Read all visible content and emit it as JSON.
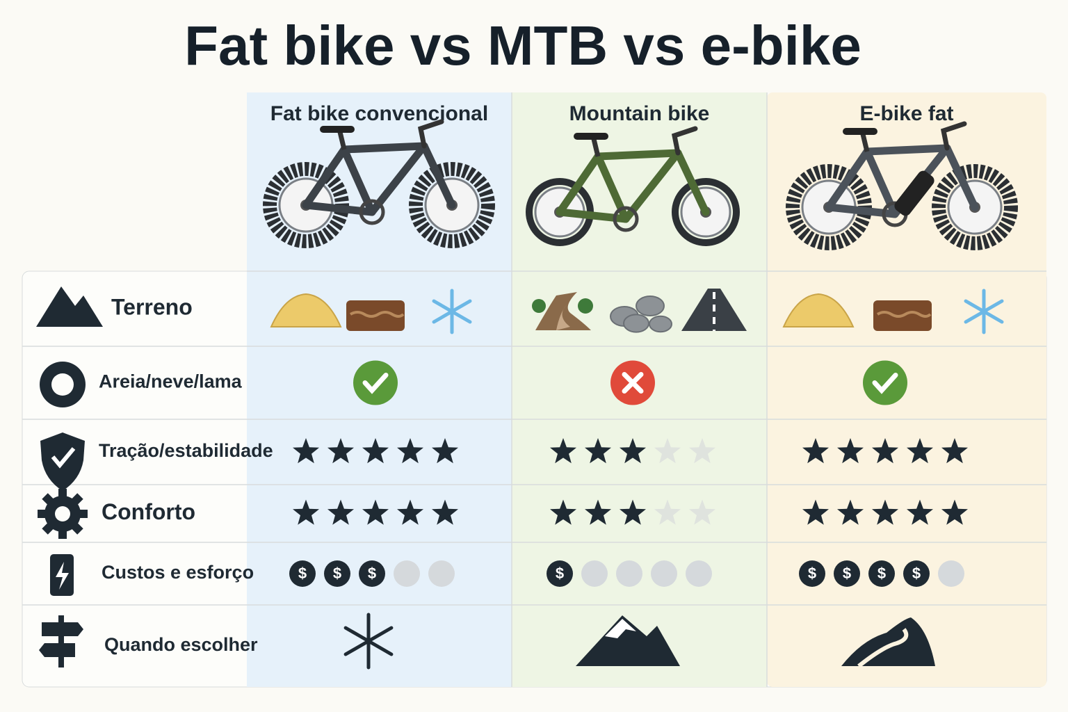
{
  "title": "Fat bike vs MTB vs e-bike",
  "columns": [
    "Fat bike convencional",
    "Mountain bike",
    "E-bike fat"
  ],
  "rows": [
    {
      "label": "Terreno"
    },
    {
      "label": "Areia/neve/lama",
      "values": [
        true,
        false,
        true
      ]
    },
    {
      "label": "Tração/estabilidade",
      "values": [
        5,
        3,
        5
      ],
      "max": 5
    },
    {
      "label": "Conforto",
      "values": [
        5,
        3,
        5
      ],
      "max": 5
    },
    {
      "label": "Custos e esforço",
      "values": [
        3,
        1,
        4
      ],
      "max": 5,
      "symbol": "$"
    },
    {
      "label": "Quando escolher"
    }
  ]
}
